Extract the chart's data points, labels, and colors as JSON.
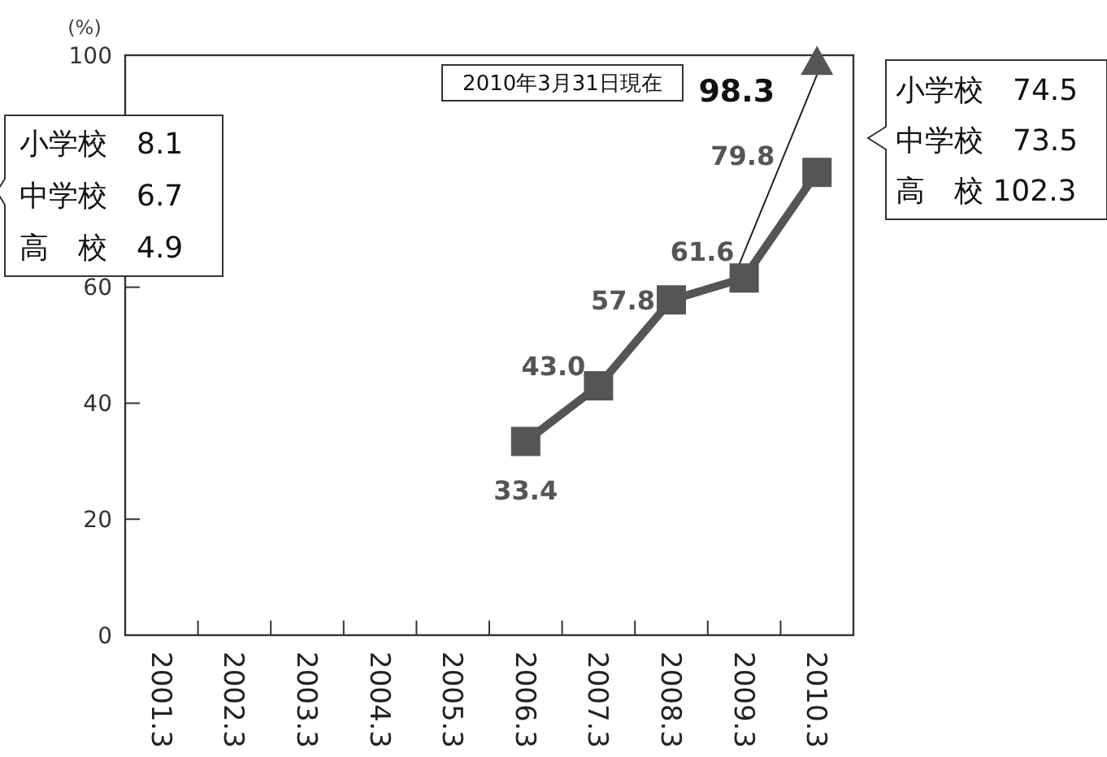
{
  "chart_data": {
    "type": "line",
    "ylabel": "(%)",
    "categories": [
      "2001.3",
      "2002.3",
      "2003.3",
      "2004.3",
      "2005.3",
      "2006.3",
      "2007.3",
      "2008.3",
      "2009.3",
      "2010.3"
    ],
    "series": [
      {
        "color": "#555555",
        "marker": "square",
        "values": [
          null,
          null,
          null,
          null,
          null,
          33.4,
          43.0,
          57.8,
          61.6,
          79.8
        ],
        "value_labels": [
          null,
          null,
          null,
          null,
          null,
          "33.4",
          "43.0",
          "57.8",
          "61.6",
          "79.8"
        ]
      },
      {
        "type": "scatter",
        "color": "#555555",
        "marker": "triangle",
        "values": [
          null,
          null,
          null,
          null,
          null,
          null,
          null,
          null,
          null,
          98.3
        ],
        "value_labels": [
          null,
          null,
          null,
          null,
          null,
          null,
          null,
          null,
          null,
          "98.3"
        ]
      }
    ],
    "ylim": [
      0,
      100
    ],
    "yticks": [
      0,
      20,
      40,
      60,
      {
        "value": 80,
        "label": null
      },
      100
    ],
    "grid": false,
    "annotations": [
      "2010年3月31日現在",
      "小学校　8.1\n中学校　6.7\n高　校　4.9",
      "小学校　74.5\n中学校　73.5\n高　校 102.3"
    ]
  }
}
